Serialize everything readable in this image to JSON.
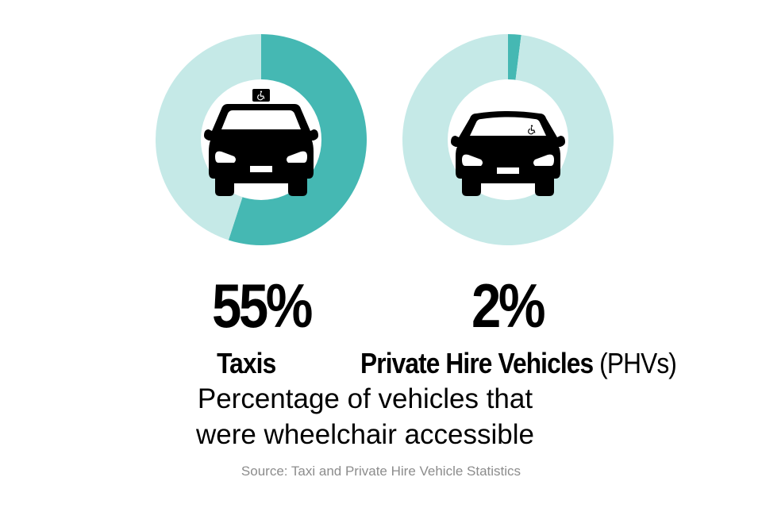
{
  "chart_data": [
    {
      "type": "pie",
      "subtype": "donut",
      "title": "Taxis",
      "categories": [
        "Wheelchair accessible",
        "Not wheelchair accessible"
      ],
      "values": [
        55,
        45
      ],
      "center_icon": "taxi-with-wheelchair-sign-icon",
      "colors": [
        "#45b8b3",
        "#c5e9e7"
      ],
      "label": "55%"
    },
    {
      "type": "pie",
      "subtype": "donut",
      "title": "Private Hire Vehicles (PHVs)",
      "categories": [
        "Wheelchair accessible",
        "Not wheelchair accessible"
      ],
      "values": [
        2,
        98
      ],
      "center_icon": "car-with-wheelchair-sticker-icon",
      "colors": [
        "#45b8b3",
        "#c5e9e7"
      ],
      "label": "2%"
    }
  ],
  "taxis": {
    "percent": "55%",
    "label": "Taxis"
  },
  "phvs": {
    "percent": "2%",
    "label_bold": "Private Hire Vehicles",
    "label_regular": " (PHVs)"
  },
  "caption": {
    "line1": "Percentage of vehicles that",
    "line2": "were wheelchair accessible"
  },
  "source": "Source: Taxi and Private Hire Vehicle Statistics",
  "colors": {
    "accent": "#45b8b3",
    "track": "#c5e9e7",
    "text": "#000000",
    "source_text": "#8c8c8c"
  }
}
